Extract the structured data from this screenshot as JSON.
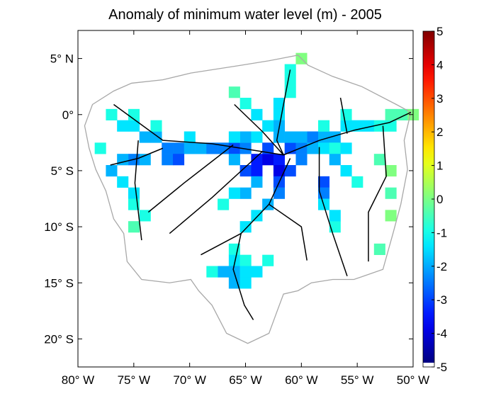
{
  "title": "Anomaly of minimum water level (m) - 2005",
  "chart_data": {
    "type": "heatmap",
    "title": "Anomaly of minimum water level (m) - 2005",
    "xlim": [
      -80,
      -50
    ],
    "ylim": [
      -22.5,
      7.5
    ],
    "x_ticks": [
      -80,
      -75,
      -70,
      -65,
      -60,
      -55,
      -50
    ],
    "x_tick_labels": [
      "80° W",
      "75° W",
      "70° W",
      "65° W",
      "60° W",
      "55° W",
      "50° W"
    ],
    "y_ticks": [
      5,
      0,
      -5,
      -10,
      -15,
      -20
    ],
    "y_tick_labels": [
      "5° N",
      "0°",
      "5° S",
      "10° S",
      "15° S",
      "20° S"
    ],
    "colorbar": {
      "colormap": "jet",
      "range": [
        -5,
        5
      ],
      "ticks": [
        "5",
        "4",
        "3",
        "2",
        "1",
        "0",
        "-1",
        "-2",
        "-3",
        "-4",
        "-5"
      ]
    },
    "colors": {
      "basin_outline": "#a8a8a8",
      "rivers": "#000000"
    },
    "basin_outline": [
      [
        -78.7,
        0.9
      ],
      [
        -76.8,
        2.1
      ],
      [
        -75.2,
        2.8
      ],
      [
        -72.4,
        3.1
      ],
      [
        -69.9,
        3.7
      ],
      [
        -65.4,
        4.4
      ],
      [
        -62.9,
        4.8
      ],
      [
        -60.3,
        5.3
      ],
      [
        -59.4,
        4.4
      ],
      [
        -57.2,
        3.4
      ],
      [
        -54.6,
        2.5
      ],
      [
        -51.5,
        0.9
      ],
      [
        -50.2,
        0.2
      ],
      [
        -50.8,
        -2.3
      ],
      [
        -50.5,
        -4.9
      ],
      [
        -51.1,
        -8.0
      ],
      [
        -51.8,
        -10.6
      ],
      [
        -52.7,
        -13.8
      ],
      [
        -55.3,
        -14.7
      ],
      [
        -57.2,
        -14.7
      ],
      [
        -59.1,
        -15.0
      ],
      [
        -60.3,
        -15.7
      ],
      [
        -61.6,
        -16.0
      ],
      [
        -62.2,
        -17.6
      ],
      [
        -62.9,
        -19.5
      ],
      [
        -64.8,
        -20.4
      ],
      [
        -66.7,
        -19.5
      ],
      [
        -68.0,
        -17.0
      ],
      [
        -69.2,
        -15.7
      ],
      [
        -69.9,
        -14.7
      ],
      [
        -71.8,
        -15.0
      ],
      [
        -74.3,
        -14.7
      ],
      [
        -75.6,
        -13.1
      ],
      [
        -75.9,
        -10.6
      ],
      [
        -76.8,
        -9.3
      ],
      [
        -77.5,
        -6.8
      ],
      [
        -78.4,
        -4.9
      ],
      [
        -79.0,
        -3.0
      ],
      [
        -79.4,
        -1.0
      ]
    ],
    "rivers": [
      [
        [
          -76.8,
          0.9
        ],
        [
          -72.4,
          -2.3
        ],
        [
          -68.0,
          -2.6
        ],
        [
          -65.4,
          -3.0
        ],
        [
          -61.6,
          -3.6
        ],
        [
          -58.4,
          -2.3
        ],
        [
          -55.3,
          -1.4
        ],
        [
          -52.1,
          -0.7
        ],
        [
          -50.2,
          0.2
        ]
      ],
      [
        [
          -61.0,
          4.0
        ],
        [
          -61.6,
          0.9
        ],
        [
          -62.2,
          -2.3
        ],
        [
          -61.6,
          -3.6
        ]
      ],
      [
        [
          -66.0,
          0.9
        ],
        [
          -63.5,
          -1.5
        ],
        [
          -61.6,
          -3.6
        ]
      ],
      [
        [
          -61.0,
          -3.9
        ],
        [
          -62.9,
          -8.0
        ],
        [
          -65.4,
          -10.6
        ],
        [
          -66.1,
          -13.8
        ],
        [
          -65.1,
          -17.0
        ],
        [
          -64.3,
          -18.3
        ]
      ],
      [
        [
          -63.5,
          -3.3
        ],
        [
          -68.0,
          -7.4
        ],
        [
          -71.8,
          -10.6
        ]
      ],
      [
        [
          -66.1,
          -2.7
        ],
        [
          -70.5,
          -6.1
        ],
        [
          -73.7,
          -8.7
        ]
      ],
      [
        [
          -74.6,
          -2.3
        ],
        [
          -74.9,
          -6.1
        ],
        [
          -74.3,
          -11.2
        ]
      ],
      [
        [
          -77.1,
          -4.5
        ],
        [
          -74.6,
          -3.9
        ],
        [
          -72.4,
          -3.0
        ]
      ],
      [
        [
          -58.4,
          -2.9
        ],
        [
          -58.4,
          -6.8
        ],
        [
          -57.2,
          -10.6
        ],
        [
          -55.9,
          -14.4
        ]
      ],
      [
        [
          -52.7,
          -1.0
        ],
        [
          -52.4,
          -5.5
        ],
        [
          -54.0,
          -8.7
        ],
        [
          -54.0,
          -13.1
        ]
      ],
      [
        [
          -56.5,
          1.5
        ],
        [
          -55.9,
          -1.7
        ]
      ],
      [
        [
          -65.4,
          -10.6
        ],
        [
          -69.0,
          -12.5
        ]
      ],
      [
        [
          -62.9,
          -8.0
        ],
        [
          -60.0,
          -10.0
        ],
        [
          -59.5,
          -13.0
        ]
      ]
    ],
    "cells": [
      [
        -77,
        0,
        -1
      ],
      [
        -76,
        -1,
        -1.5
      ],
      [
        -75,
        -1,
        -1.5
      ],
      [
        -74,
        -2,
        -2
      ],
      [
        -73,
        -2,
        -2
      ],
      [
        -72,
        -3,
        -2.5
      ],
      [
        -71,
        -3,
        -2.5
      ],
      [
        -70,
        -3,
        -2
      ],
      [
        -69,
        -3,
        -2
      ],
      [
        -68,
        -3,
        -2.5
      ],
      [
        -67,
        -3,
        -2.5
      ],
      [
        -66,
        -3,
        -3
      ],
      [
        -65,
        -3,
        -2.5
      ],
      [
        -64,
        -4,
        -3.5
      ],
      [
        -63,
        -4,
        -4
      ],
      [
        -62,
        -4,
        -3.5
      ],
      [
        -61,
        -3,
        -3
      ],
      [
        -60,
        -3,
        -2.5
      ],
      [
        -59,
        -2,
        -2.5
      ],
      [
        -58,
        -2,
        -2
      ],
      [
        -57,
        -2,
        -2
      ],
      [
        -56,
        -1,
        -1.5
      ],
      [
        -55,
        -1,
        -1.5
      ],
      [
        -54,
        -1,
        -1.5
      ],
      [
        -53,
        -1,
        -1
      ],
      [
        -52,
        -1,
        -1
      ],
      [
        -51,
        0,
        -0.5
      ],
      [
        -50,
        0,
        0
      ],
      [
        -72,
        -4,
        -2.5
      ],
      [
        -71,
        -4,
        -3
      ],
      [
        -66,
        -4,
        -2
      ],
      [
        -65,
        -5,
        -3
      ],
      [
        -64,
        -5,
        -3.5
      ],
      [
        -62,
        -5,
        -4
      ],
      [
        -61,
        -5,
        -3
      ],
      [
        -60,
        -4,
        -2.5
      ],
      [
        -59,
        -3,
        -2
      ],
      [
        -58,
        -3,
        -1.5
      ],
      [
        -57,
        -3,
        -1
      ],
      [
        -65,
        -2,
        -2
      ],
      [
        -63,
        -3,
        -3
      ],
      [
        -60,
        -2,
        -2
      ],
      [
        -61,
        -2,
        -2
      ],
      [
        -75,
        0,
        -1
      ],
      [
        -73,
        -1,
        -1
      ],
      [
        -70,
        -2,
        -1.5
      ],
      [
        -66,
        -2,
        -1.5
      ],
      [
        -64,
        -2,
        -1.5
      ],
      [
        -62,
        -2,
        -2
      ],
      [
        -58,
        -1,
        -1
      ],
      [
        -56,
        0,
        -1
      ],
      [
        -52,
        0,
        -0.5
      ],
      [
        -61,
        4,
        -1
      ],
      [
        -61,
        3,
        -1
      ],
      [
        -61,
        2,
        -1
      ],
      [
        -62,
        1,
        -1.5
      ],
      [
        -62,
        0,
        -1.5
      ],
      [
        -62,
        -1,
        -2
      ],
      [
        -65,
        1,
        -1
      ],
      [
        -64,
        0,
        -1.5
      ],
      [
        -63,
        -1,
        -1.5
      ],
      [
        -66,
        2,
        -0.5
      ],
      [
        -60,
        5,
        0
      ],
      [
        -62,
        -6,
        -3
      ],
      [
        -62,
        -7,
        -2.5
      ],
      [
        -63,
        -8,
        -2
      ],
      [
        -64,
        -9,
        -1.5
      ],
      [
        -65,
        -10,
        -1.5
      ],
      [
        -66,
        -12,
        -1
      ],
      [
        -66,
        -13,
        -1.5
      ],
      [
        -65,
        -13,
        -1
      ],
      [
        -67,
        -14,
        -2
      ],
      [
        -66,
        -14,
        -2
      ],
      [
        -65,
        -14,
        -1.5
      ],
      [
        -64,
        -14,
        -1.5
      ],
      [
        -66,
        -15,
        -2
      ],
      [
        -65,
        -15,
        -1.5
      ],
      [
        -63,
        -13,
        -1
      ],
      [
        -68,
        -14,
        -1
      ],
      [
        -64,
        -6,
        -2
      ],
      [
        -65,
        -7,
        -2
      ],
      [
        -66,
        -7,
        -1.5
      ],
      [
        -67,
        -8,
        -1
      ],
      [
        -75,
        -4,
        -2.5
      ],
      [
        -76,
        -4,
        -2
      ],
      [
        -77,
        -5,
        -2
      ],
      [
        -76,
        -6,
        -1.5
      ],
      [
        -75,
        -7,
        -1.5
      ],
      [
        -75,
        -8,
        -1
      ],
      [
        -74,
        -9,
        -1
      ],
      [
        -75,
        -10,
        -0.5
      ],
      [
        -78,
        -3,
        -1
      ],
      [
        -74,
        -4,
        -2
      ],
      [
        -58,
        -6,
        -3
      ],
      [
        -58,
        -7,
        -2.5
      ],
      [
        -58,
        -8,
        -1.5
      ],
      [
        -57,
        -10,
        -1
      ],
      [
        -57,
        -9,
        -1.5
      ],
      [
        -53,
        -4,
        -0.5
      ],
      [
        -52,
        -5,
        0
      ],
      [
        -52,
        -7,
        -0.5
      ],
      [
        -52,
        -9,
        0
      ],
      [
        -53,
        -12,
        -0.5
      ],
      [
        -57,
        -4,
        -2
      ],
      [
        -56,
        -5,
        -1.5
      ],
      [
        -55,
        -6,
        -1
      ],
      [
        -56,
        -3,
        -1.5
      ]
    ]
  }
}
